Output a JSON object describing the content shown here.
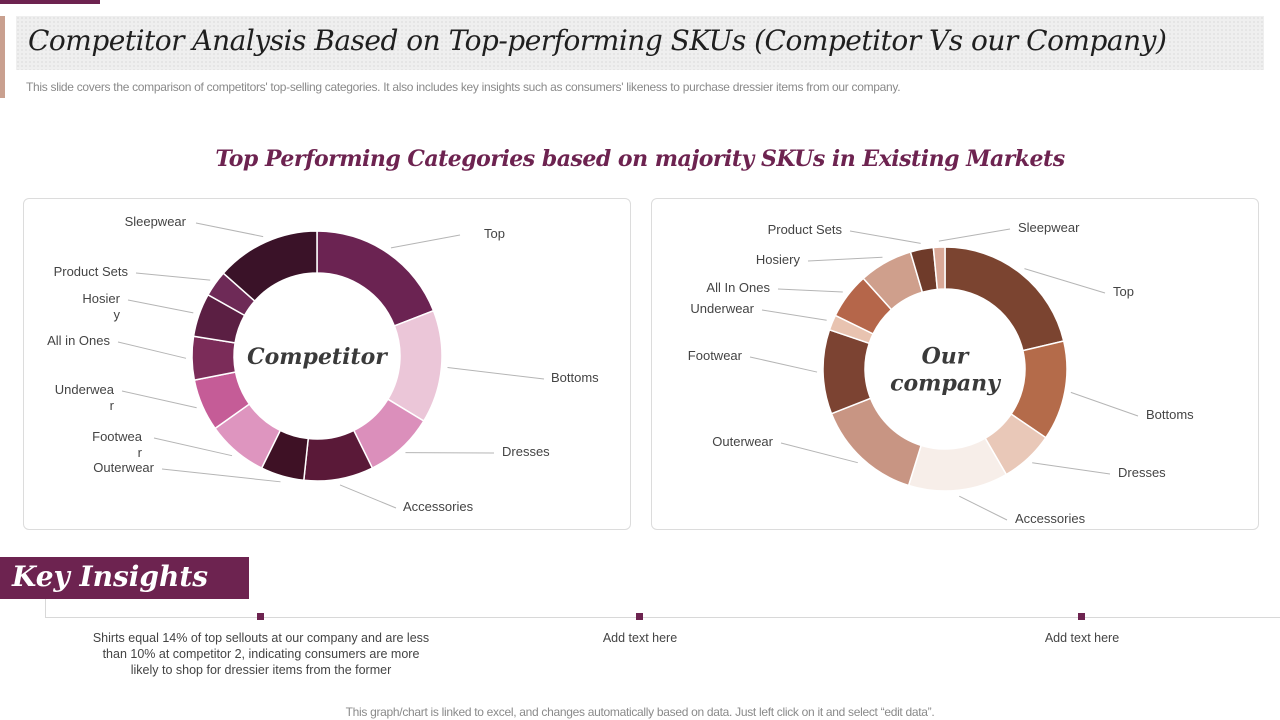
{
  "header": {
    "title": "Competitor Analysis Based on Top-performing SKUs (Competitor Vs our Company)",
    "subtitle": "This slide covers the comparison of competitors' top-selling categories. It also includes key insights such as consumers' likeness to purchase dressier items from our company."
  },
  "section_title": "Top Performing Categories based on majority SKUs in Existing Markets",
  "chart_data": [
    {
      "type": "pie",
      "title": "Competitor",
      "categories": [
        "Top",
        "Bottoms",
        "Dresses",
        "Accessories",
        "Outerwear",
        "Footwear",
        "Underwear",
        "All in Ones",
        "Hosiery",
        "Product Sets",
        "Sleepwear"
      ],
      "values": [
        17,
        13,
        8,
        8,
        5,
        7,
        6,
        5,
        5,
        3,
        12
      ],
      "colors": [
        "#6b2352",
        "#ebc6d8",
        "#db8fbb",
        "#5a1938",
        "#3e1125",
        "#de95bf",
        "#c55c97",
        "#7b2c59",
        "#5b1f43",
        "#6e2a57",
        "#3a1228"
      ]
    },
    {
      "type": "pie",
      "title": "Our company",
      "categories": [
        "Top",
        "Bottoms",
        "Dresses",
        "Accessories",
        "Outerwear",
        "Footwear",
        "Underwear",
        "All In Ones",
        "Hosiery",
        "Product Sets",
        "Sleepwear"
      ],
      "values": [
        21,
        13,
        7,
        13,
        14,
        11,
        2,
        6,
        7,
        3,
        1.5
      ],
      "colors": [
        "#7b4430",
        "#b46b4a",
        "#e9c8b8",
        "#f7eee9",
        "#c89583",
        "#7c4332",
        "#e8c3b0",
        "#b5664a",
        "#cf9f8c",
        "#6f3b2a",
        "#d9a897"
      ]
    }
  ],
  "charts": [
    {
      "center_label_lines": [
        "Competitor"
      ],
      "slice_labels": [
        {
          "lines": [
            "Top"
          ]
        },
        {
          "lines": [
            "Bottoms"
          ]
        },
        {
          "lines": [
            "Dresses"
          ]
        },
        {
          "lines": [
            "Accessories"
          ]
        },
        {
          "lines": [
            "Outerwear"
          ]
        },
        {
          "lines": [
            "Footwea",
            "r"
          ]
        },
        {
          "lines": [
            "Underwea",
            "r"
          ]
        },
        {
          "lines": [
            "All in Ones"
          ]
        },
        {
          "lines": [
            "Hosier",
            "y"
          ]
        },
        {
          "lines": [
            "Product Sets"
          ]
        },
        {
          "lines": [
            "Sleepwear"
          ]
        }
      ]
    },
    {
      "center_label_lines": [
        "Our",
        "company"
      ],
      "slice_labels": [
        {
          "lines": [
            "Top"
          ]
        },
        {
          "lines": [
            "Bottoms"
          ]
        },
        {
          "lines": [
            "Dresses"
          ]
        },
        {
          "lines": [
            "Accessories"
          ]
        },
        {
          "lines": [
            "Outerwear"
          ]
        },
        {
          "lines": [
            "Footwear"
          ]
        },
        {
          "lines": [
            "Underwear"
          ]
        },
        {
          "lines": [
            "All In Ones"
          ]
        },
        {
          "lines": [
            "Hosiery"
          ]
        },
        {
          "lines": [
            "Product Sets"
          ]
        },
        {
          "lines": [
            "Sleepwear"
          ]
        }
      ]
    }
  ],
  "key_insights": {
    "heading": "Key Insights",
    "items": [
      "Shirts equal 14% of top sellouts at our company and are less than 10% at competitor 2, indicating consumers are more likely to shop for dressier items from the former",
      "Add text here",
      "Add text here"
    ]
  },
  "footer": "This graph/chart is linked to excel, and changes automatically based on data. Just left click on it and select “edit data”.",
  "colors": {
    "accent": "#6d2350",
    "competitor_palette": "plum",
    "company_palette": "brown"
  }
}
